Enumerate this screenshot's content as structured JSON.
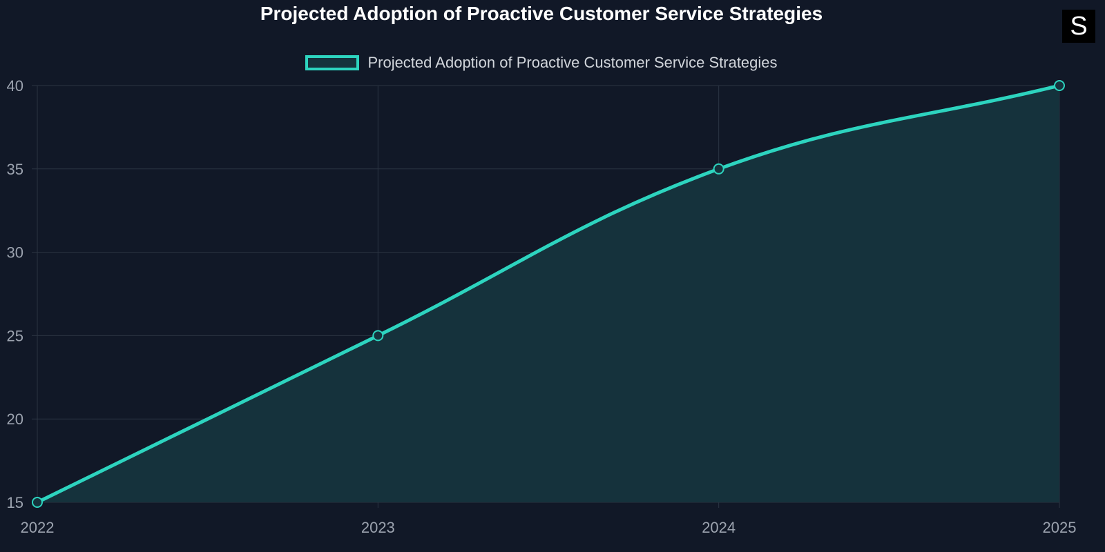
{
  "logo_text": "S",
  "chart_data": {
    "type": "line",
    "title": "Projected Adoption of Proactive Customer Service Strategies",
    "categories": [
      "2022",
      "2023",
      "2024",
      "2025"
    ],
    "series": [
      {
        "name": "Projected Adoption of Proactive Customer Service Strategies",
        "values": [
          15,
          25,
          35,
          40
        ],
        "fill": true
      }
    ],
    "ylim": [
      15,
      40
    ],
    "yticks": [
      15,
      20,
      25,
      30,
      35,
      40
    ],
    "xlabel": "",
    "ylabel": "",
    "grid": true,
    "legend": "top-center",
    "colors": {
      "line": "#2dd4bf",
      "fill": "#15323c",
      "grid": "#2b3442",
      "background": "#111827"
    }
  }
}
